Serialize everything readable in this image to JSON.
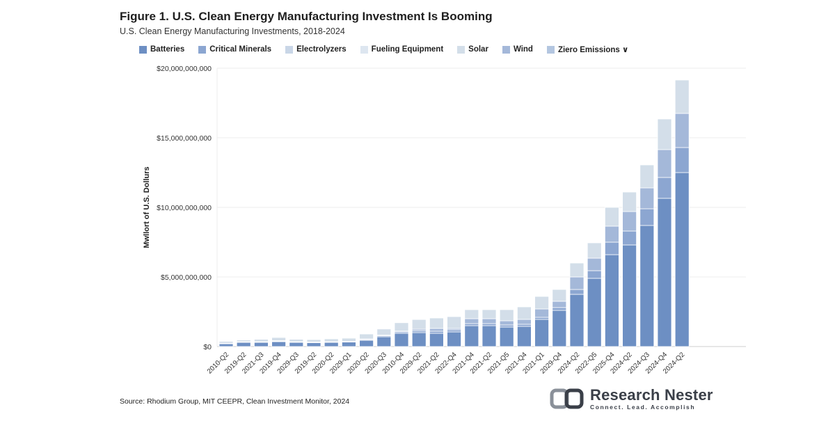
{
  "title": "Figure 1. U.S. Clean Energy Manufacturing Investment Is Booming",
  "subtitle": "U.S. Clean Energy Manufacturing Investments, 2018-2024",
  "source": "Source: Rhodium Group, MIT CEEPR, Clean Investment Monitor, 2024",
  "logo": {
    "name": "Research Nester",
    "tagline": "Connect. Lead. Accomplish"
  },
  "colors": {
    "Batteries": "#6d8fc3",
    "Critical Minerals": "#8ca6d1",
    "Electrolyzers": "#c9d6e7",
    "Fueling Equipment": "#dde6f0",
    "Solar": "#d3dee9",
    "Wind": "#a4b8d9",
    "Ziero Emissions ∨": "#b3c6e0"
  },
  "chart_data": {
    "type": "bar",
    "stacked": true,
    "title": "Figure 1. U.S. Clean Energy Manufacturing Investment Is Booming",
    "subtitle": "U.S. Clean Energy Manufacturing Investments, 2018-2024",
    "ylabel": "Mwllort of U.S. Dollurs",
    "xlabel": "",
    "ylim": [
      0,
      20000000000
    ],
    "yticks": [
      0,
      5000000000,
      10000000000,
      15000000000,
      20000000000
    ],
    "ytick_labels": [
      "$0",
      "$5,000,000,000",
      "$10,000,000,000",
      "$15,000,000,000",
      "$20,000,000,000"
    ],
    "grid": true,
    "legend_position": "top",
    "legend": [
      "Batteries",
      "Critical Minerals",
      "Electrolyzers",
      "Fueling Equipment",
      "Solar",
      "Wind",
      "Ziero Emissions ∨"
    ],
    "categories": [
      "2010-Q2",
      "2019-Q2",
      "2021-Q3",
      "2019-Q4",
      "2029-Q3",
      "2019-Q2",
      "2020-Q2",
      "2029-Q1",
      "2020-Q2",
      "2020-Q3",
      "2010-Q4",
      "2029-Q2",
      "2021-Q2",
      "2022-Q4",
      "2021-Q4",
      "2021-Q2",
      "2021-Q5",
      "2021-Q4",
      "2021-Q1",
      "2029-Q4",
      "2024-Q2",
      "2022-Q5",
      "2025-Q4",
      "2024-Q2",
      "2024-Q3",
      "2024-Q4",
      "2024-Q2"
    ],
    "series": [
      {
        "name": "Batteries",
        "values": [
          200000000,
          300000000,
          300000000,
          350000000,
          300000000,
          280000000,
          300000000,
          320000000,
          450000000,
          700000000,
          950000000,
          1000000000,
          950000000,
          1050000000,
          1500000000,
          1500000000,
          1400000000,
          1450000000,
          1950000000,
          2600000000,
          3750000000,
          4900000000,
          6600000000,
          7300000000,
          8700000000,
          10650000000,
          12500000000
        ]
      },
      {
        "name": "Critical Minerals",
        "values": [
          20000000,
          30000000,
          30000000,
          40000000,
          30000000,
          30000000,
          30000000,
          30000000,
          50000000,
          80000000,
          100000000,
          120000000,
          150000000,
          150000000,
          150000000,
          150000000,
          150000000,
          150000000,
          150000000,
          200000000,
          350000000,
          550000000,
          900000000,
          1000000000,
          1200000000,
          1500000000,
          1800000000
        ]
      },
      {
        "name": "Electrolyzers",
        "values": [
          0,
          0,
          0,
          0,
          0,
          0,
          0,
          0,
          0,
          0,
          0,
          0,
          0,
          0,
          0,
          0,
          0,
          0,
          0,
          0,
          0,
          0,
          0,
          0,
          0,
          0,
          0
        ]
      },
      {
        "name": "Fueling Equipment",
        "values": [
          0,
          0,
          0,
          0,
          0,
          0,
          0,
          0,
          0,
          0,
          0,
          0,
          0,
          0,
          0,
          0,
          0,
          0,
          0,
          0,
          0,
          0,
          0,
          0,
          0,
          0,
          0
        ]
      },
      {
        "name": "Solar",
        "values": [
          130000000,
          120000000,
          170000000,
          230000000,
          170000000,
          170000000,
          200000000,
          230000000,
          350000000,
          430000000,
          600000000,
          700000000,
          750000000,
          850000000,
          650000000,
          650000000,
          800000000,
          900000000,
          900000000,
          850000000,
          1000000000,
          1100000000,
          1350000000,
          1400000000,
          1650000000,
          2200000000,
          2400000000
        ]
      },
      {
        "name": "Wind",
        "values": [
          20000000,
          20000000,
          20000000,
          30000000,
          20000000,
          20000000,
          20000000,
          20000000,
          50000000,
          50000000,
          60000000,
          120000000,
          200000000,
          100000000,
          350000000,
          350000000,
          300000000,
          350000000,
          600000000,
          450000000,
          900000000,
          900000000,
          1150000000,
          1400000000,
          1500000000,
          2000000000,
          2450000000
        ]
      },
      {
        "name": "Ziero Emissions ∨",
        "values": [
          0,
          0,
          0,
          0,
          0,
          0,
          0,
          0,
          0,
          0,
          0,
          0,
          0,
          0,
          0,
          0,
          0,
          0,
          0,
          0,
          0,
          0,
          0,
          0,
          0,
          0,
          0
        ]
      }
    ]
  }
}
